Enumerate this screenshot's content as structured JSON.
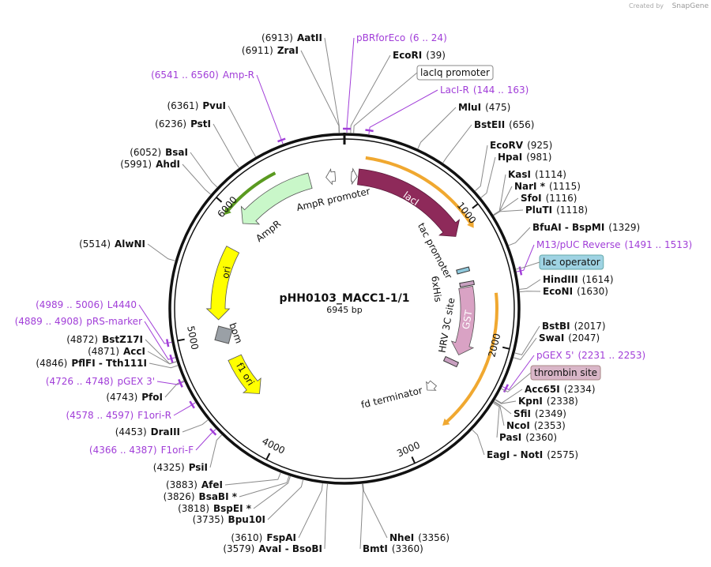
{
  "created_by": "Created by",
  "brand": "SnapGene",
  "plasmid": {
    "name": "pHH0103_MACC1-1/1",
    "size": "6945 bp"
  },
  "ring_ticks": [
    "1000",
    "2000",
    "3000",
    "4000",
    "5000",
    "6000"
  ],
  "features": [
    {
      "label": "lacI"
    },
    {
      "label": "AmpR promoter"
    },
    {
      "label": "AmpR"
    },
    {
      "label": "ori"
    },
    {
      "label": "bom"
    },
    {
      "label": "f1 ori"
    },
    {
      "label": "tac promoter"
    },
    {
      "label": "6xHis"
    },
    {
      "label": "HRV 3C site"
    },
    {
      "label": "GST"
    },
    {
      "label": "fd terminator"
    }
  ],
  "boxed_features": [
    {
      "label": "lacIq promoter"
    },
    {
      "label": "lac operator"
    },
    {
      "label": "thrombin site"
    }
  ],
  "enzymes": [
    {
      "name": "AatII",
      "position": "(6913)"
    },
    {
      "name": "ZraI",
      "position": "(6911)"
    },
    {
      "name": "PvuI",
      "position": "(6361)"
    },
    {
      "name": "PstI",
      "position": "(6236)"
    },
    {
      "name": "BsaI",
      "position": "(6052)"
    },
    {
      "name": "AhdI",
      "position": "(5991)"
    },
    {
      "name": "AlwNI",
      "position": "(5514)"
    },
    {
      "name": "BstZ17I",
      "position": "(4872)"
    },
    {
      "name": "AccI",
      "position": "(4871)"
    },
    {
      "name": "PflFI - Tth111I",
      "position": "(4846)"
    },
    {
      "name": "PfoI",
      "position": "(4743)"
    },
    {
      "name": "DraIII",
      "position": "(4453)"
    },
    {
      "name": "PsiI",
      "position": "(4325)"
    },
    {
      "name": "AfeI",
      "position": "(3883)"
    },
    {
      "name": "BsaBI *",
      "position": "(3826)"
    },
    {
      "name": "BspEI *",
      "position": "(3818)"
    },
    {
      "name": "Bpu10I",
      "position": "(3735)"
    },
    {
      "name": "FspAI",
      "position": "(3610)"
    },
    {
      "name": "AvaI - BsoBI",
      "position": "(3579)"
    },
    {
      "name": "EcoRI",
      "position": "(39)"
    },
    {
      "name": "MluI",
      "position": "(475)"
    },
    {
      "name": "BstEII",
      "position": "(656)"
    },
    {
      "name": "EcoRV",
      "position": "(925)"
    },
    {
      "name": "HpaI",
      "position": "(981)"
    },
    {
      "name": "KasI",
      "position": "(1114)"
    },
    {
      "name": "NarI *",
      "position": "(1115)"
    },
    {
      "name": "SfoI",
      "position": "(1116)"
    },
    {
      "name": "PluTI",
      "position": "(1118)"
    },
    {
      "name": "BfuAI - BspMI",
      "position": "(1329)"
    },
    {
      "name": "HindIII",
      "position": "(1614)"
    },
    {
      "name": "EcoNI",
      "position": "(1630)"
    },
    {
      "name": "BstBI",
      "position": "(2017)"
    },
    {
      "name": "SwaI",
      "position": "(2047)"
    },
    {
      "name": "Acc65I",
      "position": "(2334)"
    },
    {
      "name": "KpnI",
      "position": "(2338)"
    },
    {
      "name": "SfiI",
      "position": "(2349)"
    },
    {
      "name": "NcoI",
      "position": "(2353)"
    },
    {
      "name": "PasI",
      "position": "(2360)"
    },
    {
      "name": "EagI - NotI",
      "position": "(2575)"
    },
    {
      "name": "NheI",
      "position": "(3356)"
    },
    {
      "name": "BmtI",
      "position": "(3360)"
    }
  ],
  "primers": [
    {
      "name": "Amp-R",
      "range": "(6541 .. 6560)"
    },
    {
      "name": "L4440",
      "range": "(4989 .. 5006)"
    },
    {
      "name": "pRS-marker",
      "range": "(4889 .. 4908)"
    },
    {
      "name": "pGEX 3'",
      "range": "(4726 .. 4748)"
    },
    {
      "name": "F1ori-R",
      "range": "(4578 .. 4597)"
    },
    {
      "name": "F1ori-F",
      "range": "(4366 .. 4387)"
    },
    {
      "name": "pBRforEco",
      "range": "(6 .. 24)"
    },
    {
      "name": "LacI-R",
      "range": "(144 .. 163)"
    },
    {
      "name": "M13/pUC Reverse",
      "range": "(1491 .. 1513)"
    },
    {
      "name": "pGEX 5'",
      "range": "(2231 .. 2253)"
    }
  ]
}
